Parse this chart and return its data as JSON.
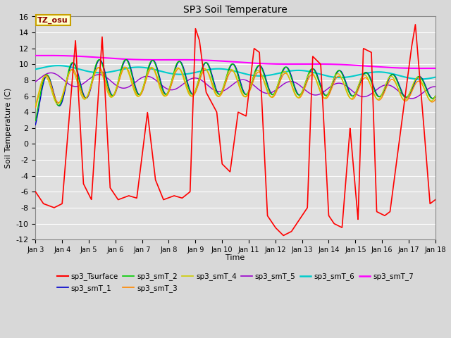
{
  "title": "SP3 Soil Temperature",
  "xlabel": "Time",
  "ylabel": "Soil Temperature (C)",
  "ylim": [
    -12,
    16
  ],
  "xlim": [
    0,
    15
  ],
  "xtick_labels": [
    "Jan 3",
    "Jan 4",
    "Jan 5",
    "Jan 6",
    "Jan 7",
    "Jan 8",
    "Jan 9",
    "Jan 10",
    "Jan 11",
    "Jan 12",
    "Jan 13",
    "Jan 14",
    "Jan 15",
    "Jan 16",
    "Jan 17",
    "Jan 18"
  ],
  "ytick_values": [
    -12,
    -10,
    -8,
    -6,
    -4,
    -2,
    0,
    2,
    4,
    6,
    8,
    10,
    12,
    14,
    16
  ],
  "fig_bg_color": "#d8d8d8",
  "plot_bg_color": "#e0e0e0",
  "grid_color": "#ffffff",
  "annotation_text": "TZ_osu",
  "annotation_color": "#8b0000",
  "annotation_bg": "#ffffcc",
  "annotation_border": "#c8a000",
  "series": {
    "sp3_Tsurface": {
      "color": "#ff0000",
      "linewidth": 1.2
    },
    "sp3_smT_1": {
      "color": "#0000cc",
      "linewidth": 1.0
    },
    "sp3_smT_2": {
      "color": "#00cc00",
      "linewidth": 1.0
    },
    "sp3_smT_3": {
      "color": "#ff8800",
      "linewidth": 1.0
    },
    "sp3_smT_4": {
      "color": "#cccc00",
      "linewidth": 1.0
    },
    "sp3_smT_5": {
      "color": "#9900cc",
      "linewidth": 1.0
    },
    "sp3_smT_6": {
      "color": "#00cccc",
      "linewidth": 1.5
    },
    "sp3_smT_7": {
      "color": "#ff00ff",
      "linewidth": 1.5
    }
  }
}
